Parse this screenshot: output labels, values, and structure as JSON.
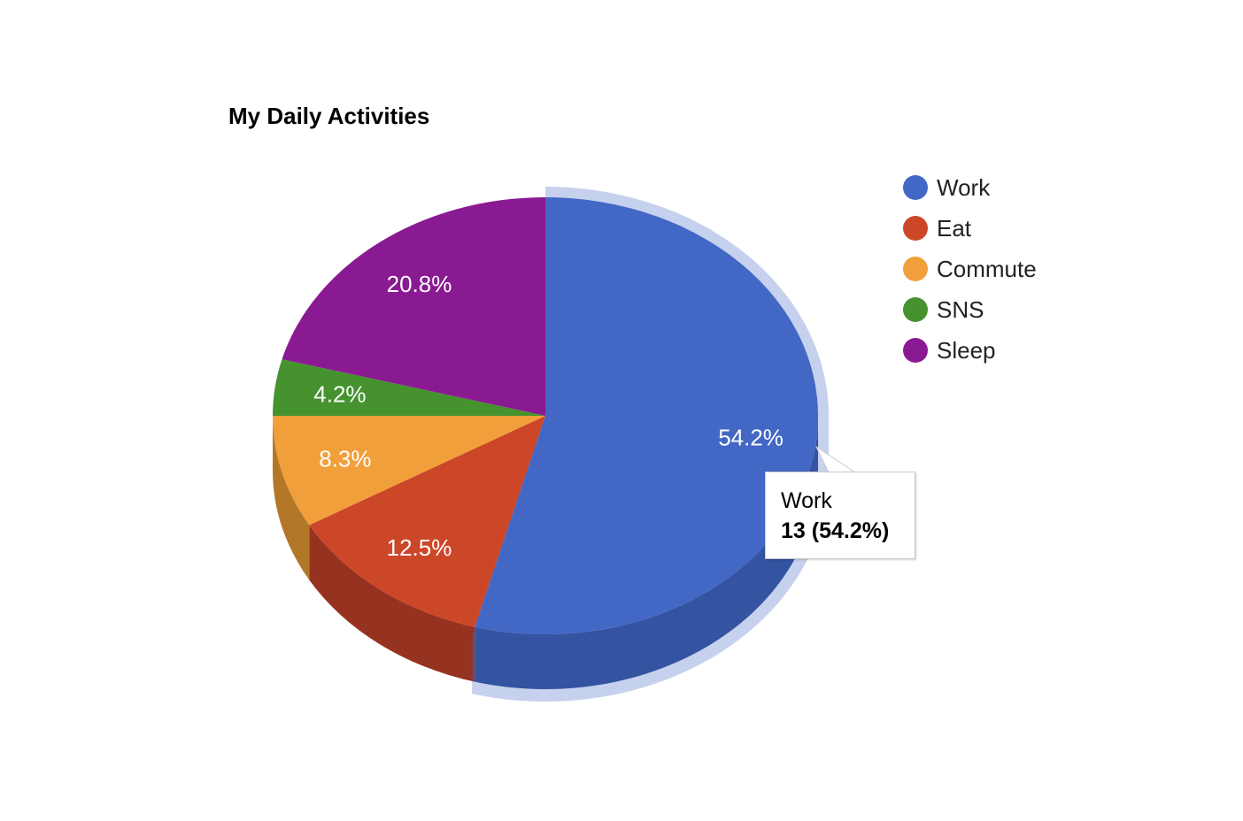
{
  "chart_data": {
    "type": "pie",
    "title": "My Daily Activities",
    "is3D": true,
    "legend_position": "right",
    "categories": [
      "Work",
      "Eat",
      "Commute",
      "SNS",
      "Sleep"
    ],
    "values": [
      13,
      3,
      2,
      1,
      5
    ],
    "percent_labels": [
      "54.2%",
      "12.5%",
      "8.3%",
      "4.2%",
      "20.8%"
    ],
    "colors": [
      "#4267c5",
      "#cc4628",
      "#f09f3a",
      "#45922f",
      "#8a1a92"
    ],
    "side_colors": [
      "#2f4c94",
      "#963320",
      "#b37728",
      "#306f21",
      "#66126b"
    ],
    "highlighted_slice": 0,
    "tooltip": {
      "label": "Work",
      "value_text": "13 (54.2%)"
    }
  }
}
